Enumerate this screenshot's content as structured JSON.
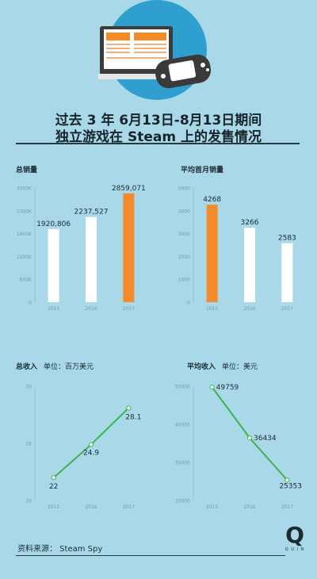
{
  "header": {
    "line1": "过去 3 年 6月13日-8月13日期间",
    "line2": "独立游戏在 Steam 上的发售情况"
  },
  "footer": {
    "source": "资料来源： Steam Spy",
    "logo_letter": "Q",
    "logo_caption": "Q U I N"
  },
  "colors": {
    "background": "#a9d9e8",
    "bar_white": "#ffffff",
    "bar_orange": "#f58a2a",
    "line_green": "#3cb44b",
    "text_dark": "#1b2a33",
    "tick_gray": "#7f97a2"
  },
  "chart_data": [
    {
      "type": "bar",
      "title": "总销量",
      "categories": [
        "2015",
        "2016",
        "2017"
      ],
      "values": [
        1920806,
        2237527,
        2859071
      ],
      "data_labels": [
        "1920,806",
        "2237,527",
        "2859,071"
      ],
      "highlight_index": 2,
      "ylim": [
        0,
        3000000
      ],
      "yticks": [
        0,
        600000,
        1200000,
        1800000,
        2400000,
        3000000
      ],
      "ytick_labels": [
        "0",
        "600K",
        "1200K",
        "1800K",
        "2400K",
        "3000K"
      ]
    },
    {
      "type": "bar",
      "title": "平均首月销量",
      "categories": [
        "2015",
        "2016",
        "2017"
      ],
      "values": [
        4268,
        3266,
        2583
      ],
      "data_labels": [
        "4268",
        "3266",
        "2583"
      ],
      "highlight_index": 0,
      "ylim": [
        0,
        5000
      ],
      "yticks": [
        0,
        1000,
        2000,
        3000,
        4000,
        5000
      ],
      "ytick_labels": [
        "0",
        "1000",
        "2000",
        "3000",
        "4000",
        "5000"
      ]
    },
    {
      "type": "line",
      "title": "总收入",
      "unit": "单位：百万美元",
      "categories": [
        "2015",
        "2016",
        "2017"
      ],
      "values": [
        22,
        24.9,
        28.1
      ],
      "data_labels": [
        "22",
        "24.9",
        "28.1"
      ],
      "ylim": [
        20,
        30
      ],
      "yticks": [
        20,
        25,
        30
      ],
      "ytick_labels": [
        "20",
        "25",
        "30"
      ]
    },
    {
      "type": "line",
      "title": "平均收入",
      "unit": "单位：美元",
      "categories": [
        "2015",
        "2016",
        "2017"
      ],
      "values": [
        49759,
        36434,
        25353
      ],
      "data_labels": [
        "49759",
        "36434",
        "25353"
      ],
      "ylim": [
        20000,
        50000
      ],
      "yticks": [
        20000,
        30000,
        40000,
        50000
      ],
      "ytick_labels": [
        "20000",
        "30000",
        "40000",
        "50000"
      ]
    }
  ]
}
